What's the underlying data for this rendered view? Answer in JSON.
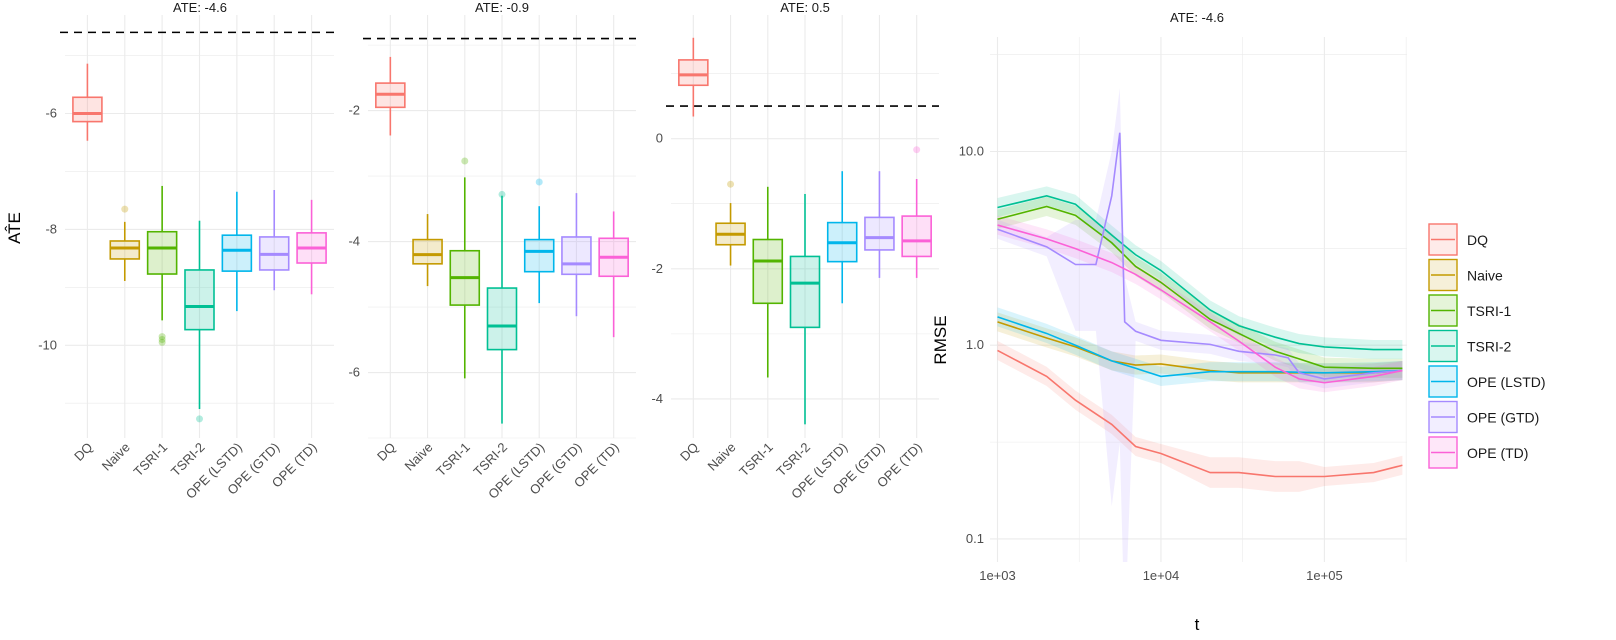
{
  "colors": {
    "DQ": "#F8766D",
    "Naive": "#C49A00",
    "TSRI-1": "#53B400",
    "TSRI-2": "#00C094",
    "OPE (LSTD)": "#00B6EB",
    "OPE (GTD)": "#A58AFF",
    "OPE (TD)": "#FB61D7"
  },
  "chart_data": [
    {
      "type": "box",
      "title": "ATE: -4.6",
      "ylabel": "AT̂E",
      "reference_line": -4.6,
      "ylim": [
        -11.6,
        -4.3
      ],
      "yticks": [
        "-6",
        "-8",
        "-10"
      ],
      "ytick_values": [
        -6,
        -8,
        -10
      ],
      "grid": true,
      "categories": [
        "DQ",
        "Naive",
        "TSRI-1",
        "TSRI-2",
        "OPE (LSTD)",
        "OPE (GTD)",
        "OPE (TD)"
      ],
      "boxes": [
        {
          "lower": -6.47,
          "q1": -6.14,
          "median": -6.0,
          "q3": -5.72,
          "upper": -5.14,
          "outliers": []
        },
        {
          "lower": -8.89,
          "q1": -8.51,
          "median": -8.32,
          "q3": -8.2,
          "upper": -7.87,
          "outliers": [
            -7.65
          ]
        },
        {
          "lower": -9.57,
          "q1": -8.77,
          "median": -8.32,
          "q3": -8.04,
          "upper": -7.25,
          "outliers": [
            -9.85,
            -9.9,
            -9.95
          ]
        },
        {
          "lower": -11.1,
          "q1": -9.73,
          "median": -9.33,
          "q3": -8.7,
          "upper": -7.85,
          "outliers": [
            -11.27
          ]
        },
        {
          "lower": -9.41,
          "q1": -8.72,
          "median": -8.36,
          "q3": -8.1,
          "upper": -7.35,
          "outliers": []
        },
        {
          "lower": -9.05,
          "q1": -8.7,
          "median": -8.43,
          "q3": -8.13,
          "upper": -7.32,
          "outliers": []
        },
        {
          "lower": -9.12,
          "q1": -8.58,
          "median": -8.32,
          "q3": -8.06,
          "upper": -7.49,
          "outliers": []
        }
      ]
    },
    {
      "type": "box",
      "title": "ATE: -0.9",
      "reference_line": -0.9,
      "ylim": [
        -7.0,
        -0.54
      ],
      "yticks": [
        "-2",
        "-4",
        "-6"
      ],
      "ytick_values": [
        -2,
        -4,
        -6
      ],
      "grid": true,
      "categories": [
        "DQ",
        "Naive",
        "TSRI-1",
        "TSRI-2",
        "OPE (LSTD)",
        "OPE (GTD)",
        "OPE (TD)"
      ],
      "boxes": [
        {
          "lower": -2.38,
          "q1": -1.95,
          "median": -1.75,
          "q3": -1.58,
          "upper": -1.18,
          "outliers": []
        },
        {
          "lower": -4.68,
          "q1": -4.34,
          "median": -4.2,
          "q3": -3.97,
          "upper": -3.58,
          "outliers": []
        },
        {
          "lower": -6.09,
          "q1": -4.97,
          "median": -4.55,
          "q3": -4.14,
          "upper": -3.02,
          "outliers": [
            -2.77
          ]
        },
        {
          "lower": -6.78,
          "q1": -5.65,
          "median": -5.29,
          "q3": -4.71,
          "upper": -3.3,
          "outliers": [
            -3.28
          ]
        },
        {
          "lower": -4.94,
          "q1": -4.46,
          "median": -4.15,
          "q3": -3.97,
          "upper": -3.46,
          "outliers": [
            -3.09
          ]
        },
        {
          "lower": -5.14,
          "q1": -4.5,
          "median": -4.34,
          "q3": -3.93,
          "upper": -3.26,
          "outliers": []
        },
        {
          "lower": -5.46,
          "q1": -4.53,
          "median": -4.24,
          "q3": -3.95,
          "upper": -3.54,
          "outliers": []
        }
      ]
    },
    {
      "type": "box",
      "title": "ATE: 0.5",
      "reference_line": 0.5,
      "ylim": [
        -4.6,
        1.9
      ],
      "yticks": [
        "0",
        "-2",
        "-4"
      ],
      "ytick_values": [
        0,
        -2,
        -4
      ],
      "grid": true,
      "categories": [
        "DQ",
        "Naive",
        "TSRI-1",
        "TSRI-2",
        "OPE (LSTD)",
        "OPE (GTD)",
        "OPE (TD)"
      ],
      "boxes": [
        {
          "lower": 0.34,
          "q1": 0.82,
          "median": 0.98,
          "q3": 1.21,
          "upper": 1.55,
          "outliers": []
        },
        {
          "lower": -1.95,
          "q1": -1.63,
          "median": -1.47,
          "q3": -1.3,
          "upper": -0.99,
          "outliers": [
            -0.7
          ]
        },
        {
          "lower": -3.67,
          "q1": -2.53,
          "median": -1.88,
          "q3": -1.55,
          "upper": -0.74,
          "outliers": []
        },
        {
          "lower": -4.39,
          "q1": -2.9,
          "median": -2.22,
          "q3": -1.81,
          "upper": -0.85,
          "outliers": []
        },
        {
          "lower": -2.53,
          "q1": -1.89,
          "median": -1.6,
          "q3": -1.29,
          "upper": -0.5,
          "outliers": []
        },
        {
          "lower": -2.14,
          "q1": -1.71,
          "median": -1.52,
          "q3": -1.21,
          "upper": -0.5,
          "outliers": []
        },
        {
          "lower": -2.14,
          "q1": -1.81,
          "median": -1.57,
          "q3": -1.19,
          "upper": -0.62,
          "outliers": [
            -0.17
          ]
        }
      ]
    },
    {
      "type": "line",
      "title": "ATE: -4.6",
      "xlabel": "t",
      "ylabel": "RMSE",
      "xscale": "log10",
      "yscale": "log10",
      "xlim": [
        900,
        320000
      ],
      "ylim": [
        0.076,
        39
      ],
      "xticks": [
        "1e+03",
        "1e+04",
        "1e+05"
      ],
      "xtick_values": [
        1000,
        10000,
        100000
      ],
      "yticks": [
        "10.0",
        "1.0",
        "0.1"
      ],
      "ytick_values": [
        10,
        1,
        0.1
      ],
      "grid": true,
      "legend_position": "right",
      "series": [
        {
          "name": "DQ",
          "x": [
            1000,
            2000,
            3000,
            5000,
            7000,
            10000,
            20000,
            30000,
            50000,
            70000,
            100000,
            200000,
            300000
          ],
          "y": [
            0.94,
            0.69,
            0.52,
            0.39,
            0.3,
            0.276,
            0.22,
            0.22,
            0.21,
            0.21,
            0.21,
            0.22,
            0.24
          ]
        },
        {
          "name": "Naive",
          "x": [
            1000,
            2000,
            3000,
            5000,
            7000,
            10000,
            20000,
            30000,
            50000,
            100000,
            200000,
            300000
          ],
          "y": [
            1.32,
            1.09,
            0.98,
            0.83,
            0.79,
            0.8,
            0.74,
            0.72,
            0.72,
            0.72,
            0.72,
            0.74
          ]
        },
        {
          "name": "TSRI-1",
          "x": [
            1000,
            2000,
            3000,
            5000,
            7000,
            10000,
            20000,
            30000,
            50000,
            70000,
            100000,
            200000,
            300000
          ],
          "y": [
            4.47,
            5.2,
            4.68,
            3.38,
            2.55,
            2.11,
            1.36,
            1.15,
            0.93,
            0.85,
            0.77,
            0.76,
            0.76
          ]
        },
        {
          "name": "TSRI-2",
          "x": [
            1000,
            2000,
            3000,
            5000,
            7000,
            10000,
            20000,
            30000,
            50000,
            70000,
            100000,
            200000,
            300000
          ],
          "y": [
            5.14,
            5.9,
            5.34,
            3.7,
            2.93,
            2.43,
            1.52,
            1.26,
            1.1,
            1.02,
            0.98,
            0.95,
            0.95
          ]
        },
        {
          "name": "OPE (LSTD)",
          "x": [
            1000,
            2000,
            3000,
            5000,
            7000,
            10000,
            20000,
            30000,
            50000,
            100000,
            200000,
            300000
          ],
          "y": [
            1.4,
            1.15,
            1.0,
            0.83,
            0.76,
            0.69,
            0.73,
            0.73,
            0.73,
            0.72,
            0.73,
            0.74
          ]
        },
        {
          "name": "OPE (GTD)",
          "x": [
            1000,
            2000,
            3000,
            4000,
            5000,
            5600,
            6000,
            7000,
            10000,
            20000,
            30000,
            50000,
            60000,
            70000,
            100000,
            200000,
            300000
          ],
          "y": [
            3.97,
            3.22,
            2.61,
            2.61,
            5.9,
            12.5,
            1.32,
            1.18,
            1.06,
            1.01,
            0.93,
            0.89,
            0.86,
            0.72,
            0.67,
            0.72,
            0.74
          ]
        },
        {
          "name": "OPE (TD)",
          "x": [
            1000,
            2000,
            3000,
            5000,
            7000,
            10000,
            20000,
            30000,
            50000,
            70000,
            100000,
            200000,
            300000
          ],
          "y": [
            4.17,
            3.54,
            3.15,
            2.67,
            2.32,
            1.93,
            1.32,
            1.05,
            0.77,
            0.67,
            0.64,
            0.69,
            0.74
          ]
        }
      ]
    }
  ]
}
